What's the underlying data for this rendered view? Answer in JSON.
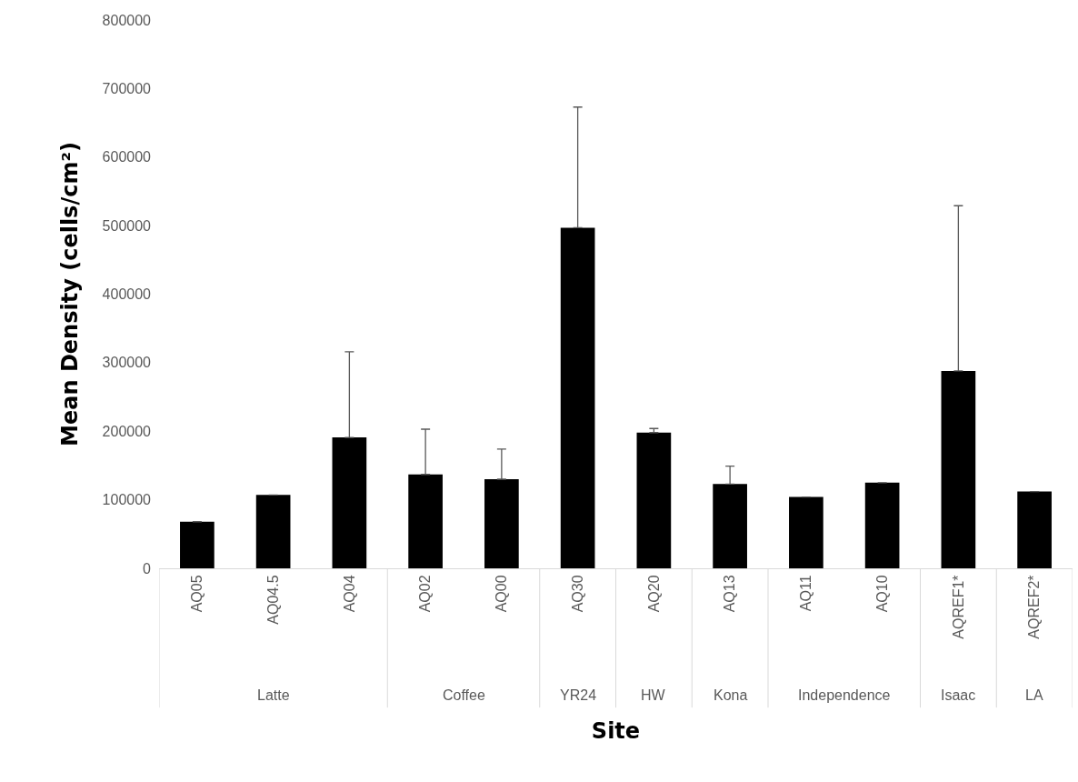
{
  "chart_data": {
    "type": "bar",
    "xlabel": "Site",
    "ylabel": "Mean Density (cells/cm²)",
    "categories": [
      "AQ05",
      "AQ04.5",
      "AQ04",
      "AQ02",
      "AQ00",
      "AQ30",
      "AQ20",
      "AQ13",
      "AQ11",
      "AQ10",
      "AQREF1*",
      "AQREF2*"
    ],
    "values": [
      68000,
      107000,
      191000,
      137000,
      130000,
      497000,
      198000,
      123000,
      104000,
      125000,
      288000,
      112000
    ],
    "errors": [
      null,
      null,
      [
        191000,
        316000
      ],
      [
        137000,
        203000
      ],
      [
        130000,
        174000
      ],
      [
        497000,
        673000
      ],
      [
        198000,
        204000
      ],
      [
        123000,
        149000
      ],
      null,
      null,
      [
        288000,
        529000
      ],
      null
    ],
    "color": "#000000",
    "ylim": [
      0,
      800000
    ],
    "yticks": [
      0,
      100000,
      200000,
      300000,
      400000,
      500000,
      600000,
      700000,
      800000
    ],
    "grid": false,
    "legend": false,
    "annotations": [
      "Latte",
      "Coffee",
      "YR24",
      "HW",
      "Kona",
      "Independence",
      "Isaac",
      "LA"
    ]
  }
}
